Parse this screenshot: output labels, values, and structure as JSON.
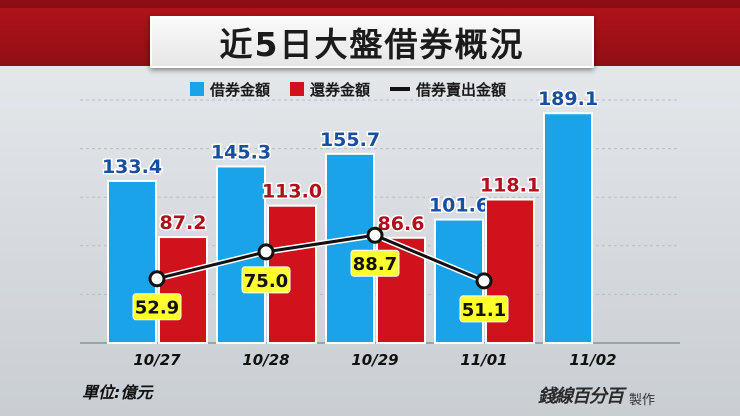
{
  "title": "近5日大盤借券概況",
  "unit_label": "單位:億元",
  "brand": {
    "name": "錢線百分百",
    "tag": "製作"
  },
  "colors": {
    "lend": "#1aa3e8",
    "return": "#d0121d",
    "line": "#111111",
    "label_lend": "#1a4fa0",
    "label_return": "#b0101a",
    "label_sell": "#111111",
    "sell_box": "#ffff2e"
  },
  "chart_data": {
    "type": "bar",
    "categories": [
      "10/27",
      "10/28",
      "10/29",
      "11/01",
      "11/02"
    ],
    "series": [
      {
        "name": "借券金額",
        "values": [
          133.4,
          145.3,
          155.7,
          101.6,
          189.1
        ]
      },
      {
        "name": "還券金額",
        "values": [
          87.2,
          113.0,
          86.6,
          118.1,
          null
        ]
      },
      {
        "name": "借券賣出金額",
        "type": "line",
        "values": [
          52.9,
          75.0,
          88.7,
          51.1,
          null
        ]
      }
    ],
    "value_labels": {
      "lend": [
        "133.4",
        "145.3",
        "155.7",
        "101.6",
        "189.1"
      ],
      "return": [
        "87.2",
        "113.0",
        "86.6",
        "118.1",
        ""
      ],
      "sell": [
        "52.9",
        "75.0",
        "88.7",
        "51.1",
        ""
      ]
    },
    "ylim": [
      0,
      200
    ],
    "grid": true,
    "legend": "top"
  }
}
